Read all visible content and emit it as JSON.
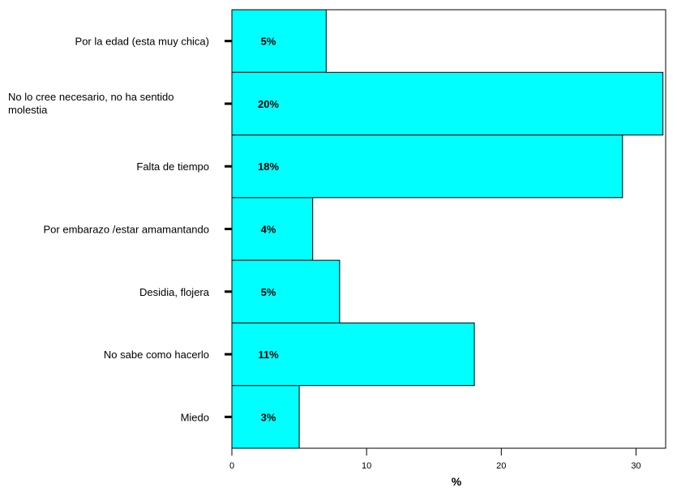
{
  "chart_data": {
    "type": "bar",
    "orientation": "horizontal",
    "categories": [
      [
        "Por la edad (esta muy chica)"
      ],
      [
        "No lo cree necesario, no ha sentido",
        "molestia"
      ],
      [
        "Falta de tiempo"
      ],
      [
        "Por embarazo /estar amamantando"
      ],
      [
        "Desidia, flojera"
      ],
      [
        "No sabe como hacerlo"
      ],
      [
        "Miedo"
      ]
    ],
    "values": [
      7,
      32,
      29,
      6,
      8,
      18,
      5
    ],
    "data_labels": [
      "5%",
      "20%",
      "18%",
      "4%",
      "5%",
      "11%",
      "3%"
    ],
    "xlabel": "%",
    "ylabel": "",
    "title": "",
    "xlim": [
      0,
      32.2
    ],
    "xticks": [
      0,
      10,
      20,
      30
    ],
    "bar_color": "#00ffff",
    "grid": false,
    "legend": "none"
  }
}
